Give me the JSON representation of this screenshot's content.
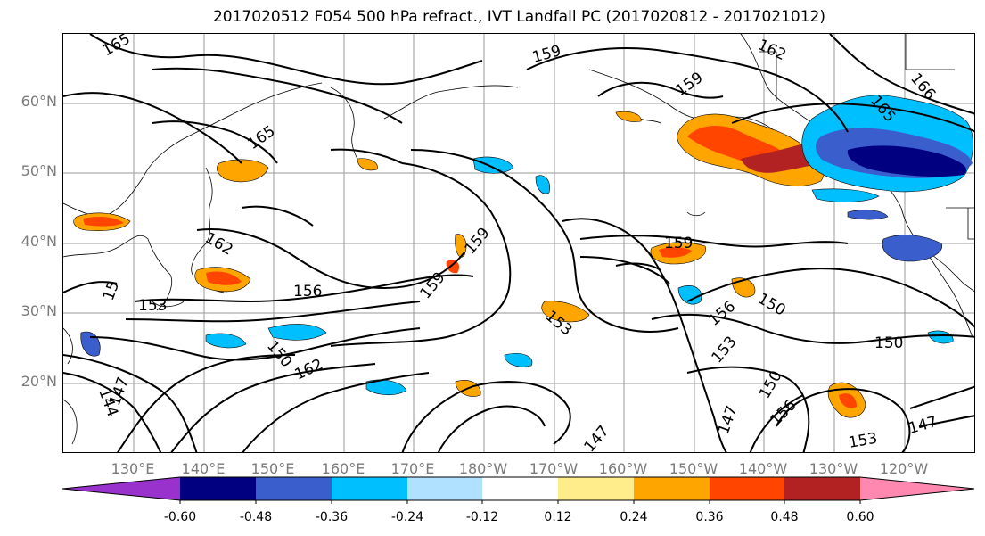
{
  "title": "2017020512 F054 500 hPa refract., IVT Landfall PC (2017020812 - 2017021012)",
  "lat_labels": [
    "60°N",
    "50°N",
    "40°N",
    "30°N",
    "20°N"
  ],
  "lon_labels": [
    "130°E",
    "140°E",
    "150°E",
    "160°E",
    "170°E",
    "180°W",
    "170°W",
    "160°W",
    "150°W",
    "140°W",
    "130°W",
    "120°W"
  ],
  "contour_labels": [
    "165",
    "159",
    "162",
    "166",
    "165",
    "159",
    "165",
    "162",
    "159",
    "156",
    "153",
    "159",
    "159",
    "153",
    "156",
    "150",
    "150",
    "162",
    "153",
    "156",
    "150",
    "147",
    "147",
    "153",
    "147",
    "144",
    "147",
    "150",
    "15"
  ],
  "colorbar": {
    "ticks": [
      "-0.60",
      "-0.48",
      "-0.36",
      "-0.24",
      "-0.12",
      "0.12",
      "0.24",
      "0.36",
      "0.48",
      "0.60"
    ],
    "colors": [
      "#9932cc",
      "#000080",
      "#3a5fcd",
      "#00bfff",
      "#b0e2ff",
      "#ffffff",
      "#ffec8b",
      "#ffa500",
      "#ff4500",
      "#b22222",
      "#ff88b0"
    ]
  }
}
